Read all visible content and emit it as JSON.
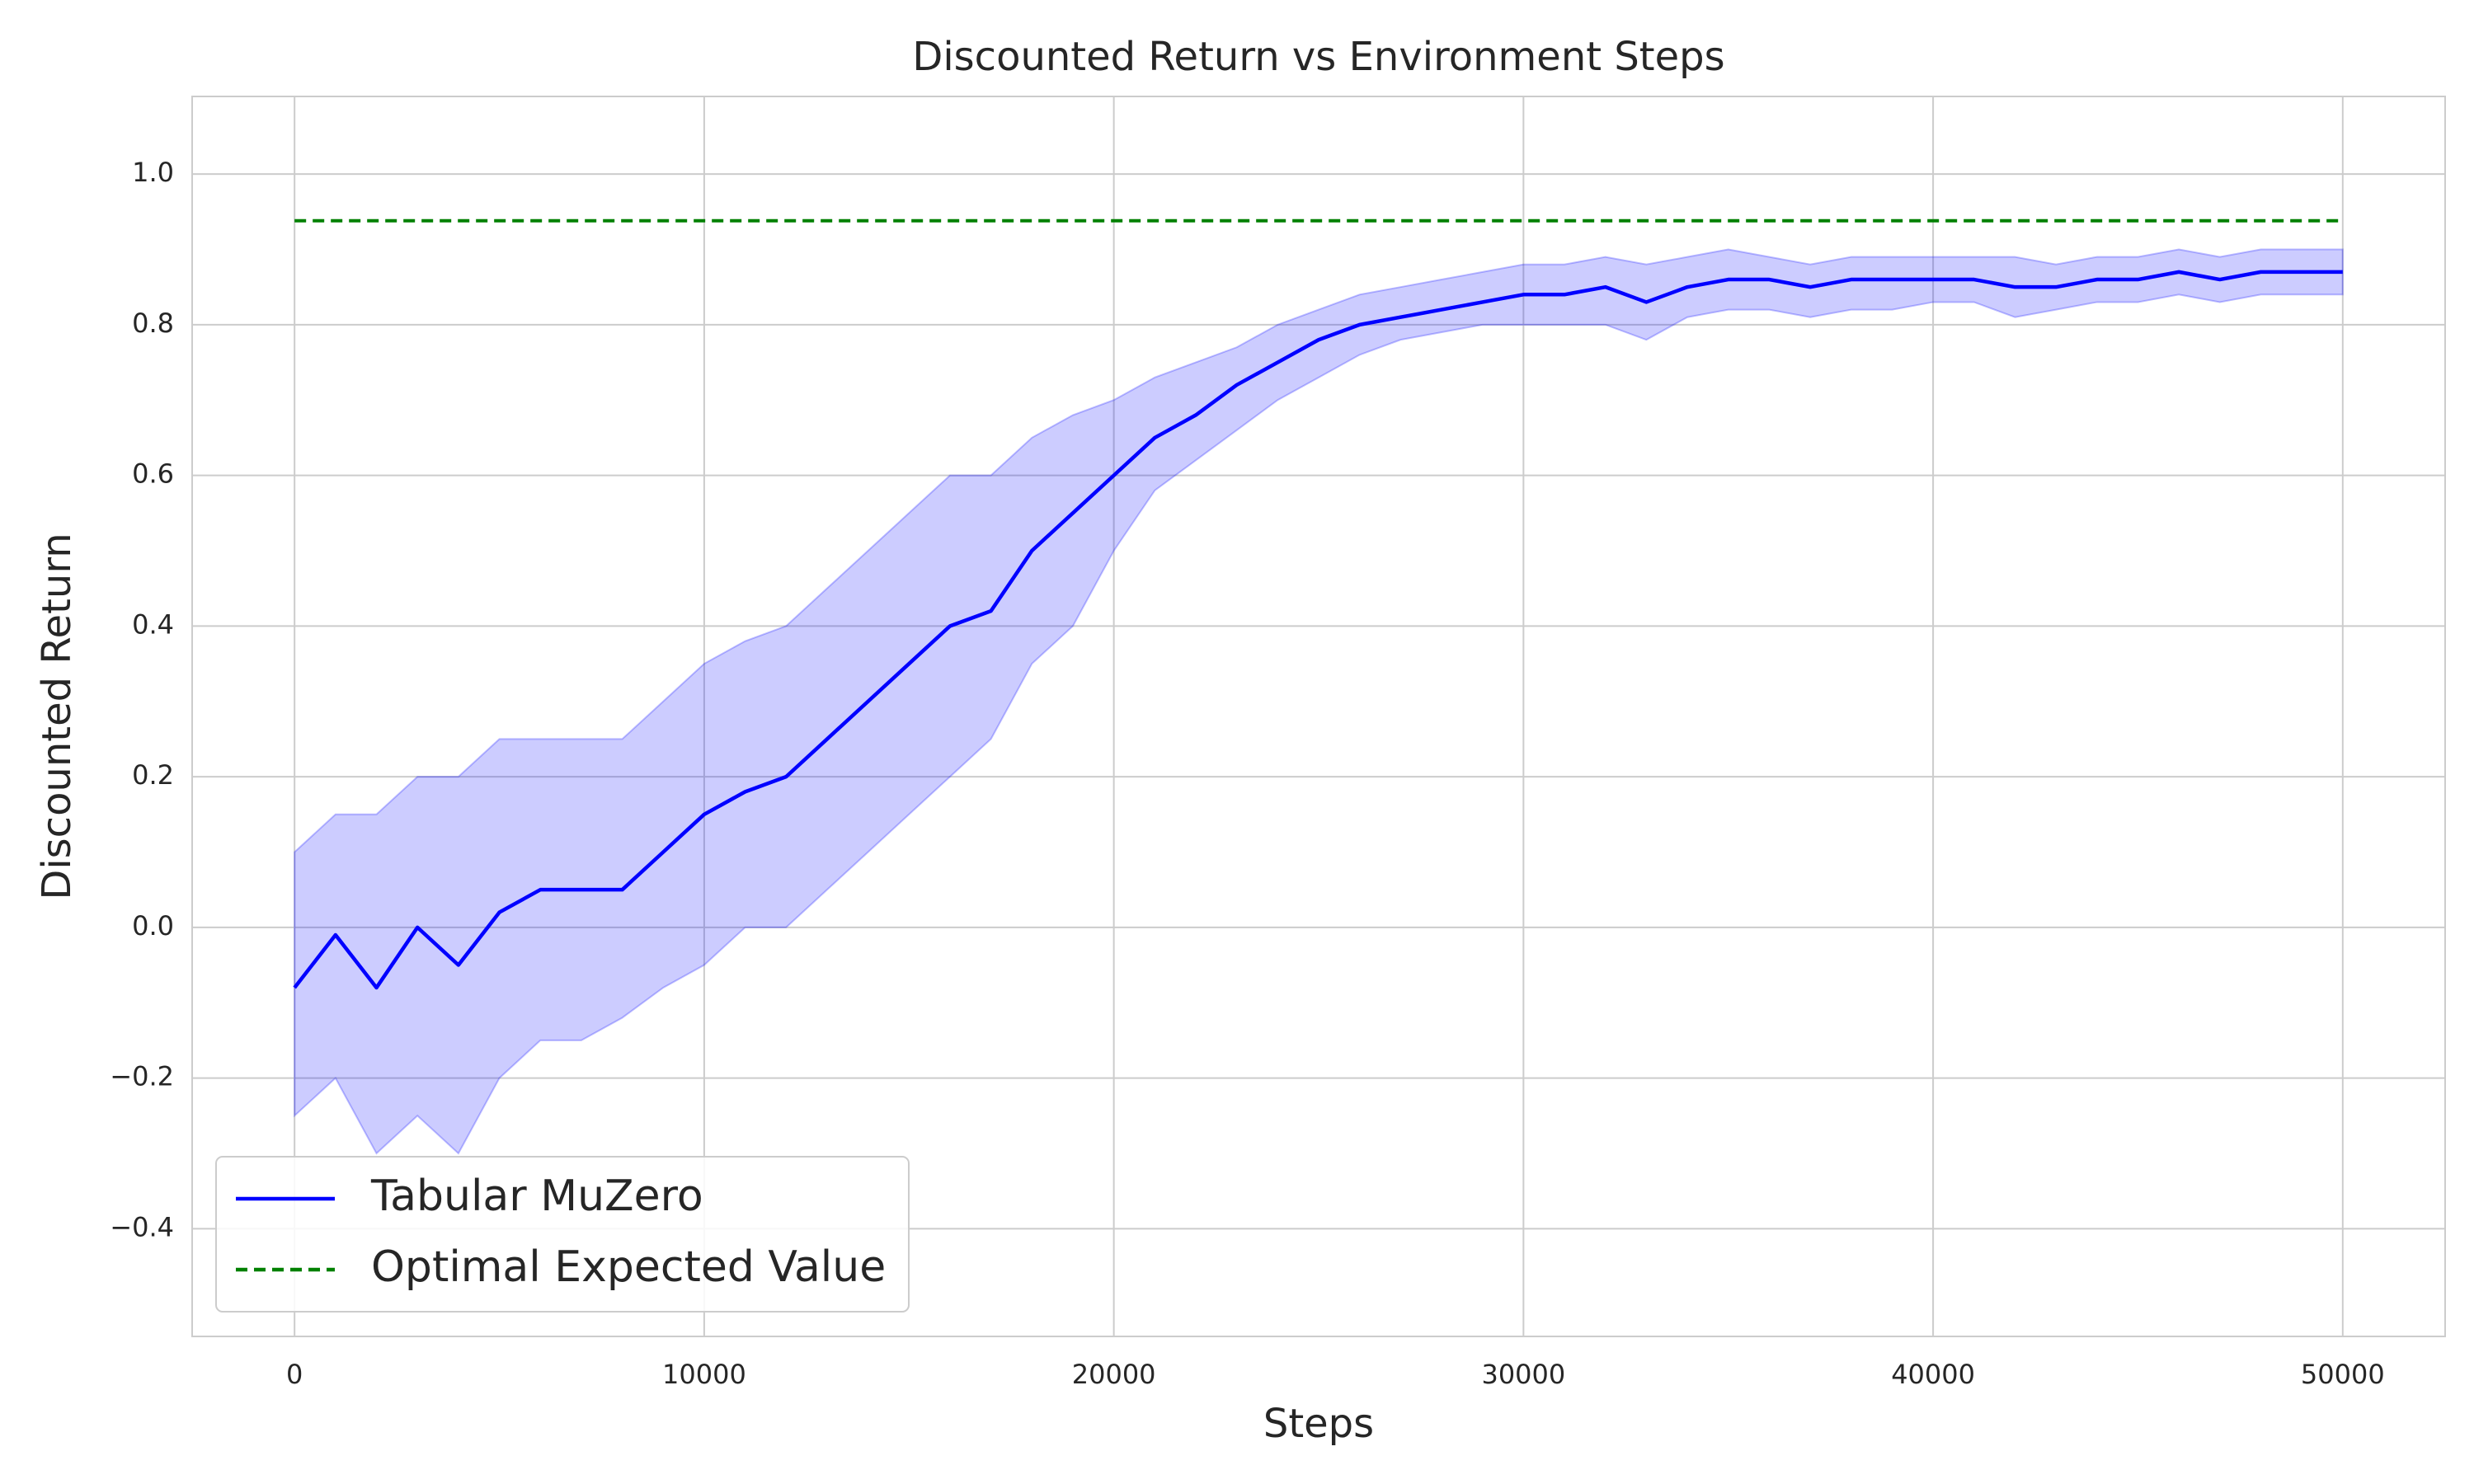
{
  "chart_data": {
    "type": "line",
    "title": "Discounted Return vs Environment Steps",
    "x_label": "Steps",
    "y_label": "Discounted Return",
    "x": [
      0,
      1000,
      2000,
      3000,
      4000,
      5000,
      6000,
      7000,
      8000,
      9000,
      10000,
      11000,
      12000,
      13000,
      14000,
      15000,
      16000,
      17000,
      18000,
      19000,
      20000,
      21000,
      22000,
      23000,
      24000,
      25000,
      26000,
      27000,
      28000,
      29000,
      30000,
      31000,
      32000,
      33000,
      34000,
      35000,
      36000,
      37000,
      38000,
      39000,
      40000,
      41000,
      42000,
      43000,
      44000,
      45000,
      46000,
      47000,
      48000,
      49000,
      50000
    ],
    "series": [
      {
        "name": "Tabular MuZero",
        "color": "#0000ff",
        "style": "solid",
        "band_color": "#0000ff",
        "values": [
          -0.08,
          -0.01,
          -0.08,
          0.0,
          -0.05,
          0.02,
          0.05,
          0.05,
          0.05,
          0.1,
          0.15,
          0.18,
          0.2,
          0.25,
          0.3,
          0.35,
          0.4,
          0.42,
          0.5,
          0.55,
          0.6,
          0.65,
          0.68,
          0.72,
          0.75,
          0.78,
          0.8,
          0.81,
          0.82,
          0.83,
          0.84,
          0.84,
          0.85,
          0.83,
          0.85,
          0.86,
          0.86,
          0.85,
          0.86,
          0.86,
          0.86,
          0.86,
          0.85,
          0.85,
          0.86,
          0.86,
          0.87,
          0.86,
          0.87,
          0.87,
          0.87
        ],
        "lower": [
          -0.25,
          -0.2,
          -0.3,
          -0.25,
          -0.3,
          -0.2,
          -0.15,
          -0.15,
          -0.12,
          -0.08,
          -0.05,
          0.0,
          0.0,
          0.05,
          0.1,
          0.15,
          0.2,
          0.25,
          0.35,
          0.4,
          0.5,
          0.58,
          0.62,
          0.66,
          0.7,
          0.73,
          0.76,
          0.78,
          0.79,
          0.8,
          0.8,
          0.8,
          0.8,
          0.78,
          0.81,
          0.82,
          0.82,
          0.81,
          0.82,
          0.82,
          0.83,
          0.83,
          0.81,
          0.82,
          0.83,
          0.83,
          0.84,
          0.83,
          0.84,
          0.84,
          0.84
        ],
        "upper": [
          0.1,
          0.15,
          0.15,
          0.2,
          0.2,
          0.25,
          0.25,
          0.25,
          0.25,
          0.3,
          0.35,
          0.38,
          0.4,
          0.45,
          0.5,
          0.55,
          0.6,
          0.6,
          0.65,
          0.68,
          0.7,
          0.73,
          0.75,
          0.77,
          0.8,
          0.82,
          0.84,
          0.85,
          0.86,
          0.87,
          0.88,
          0.88,
          0.89,
          0.88,
          0.89,
          0.9,
          0.89,
          0.88,
          0.89,
          0.89,
          0.89,
          0.89,
          0.89,
          0.88,
          0.89,
          0.89,
          0.9,
          0.89,
          0.9,
          0.9,
          0.9
        ]
      },
      {
        "name": "Optimal Expected Value",
        "color": "#008000",
        "style": "dashed",
        "x": [
          0,
          50000
        ],
        "values": [
          0.938,
          0.938
        ]
      }
    ],
    "xlim": [
      -2500,
      52500
    ],
    "ylim": [
      -0.543,
      1.103
    ],
    "xticks": [
      0,
      10000,
      20000,
      30000,
      40000,
      50000
    ],
    "yticks": [
      {
        "value": -0.4,
        "label": "−0.4"
      },
      {
        "value": -0.2,
        "label": "−0.2"
      },
      {
        "value": 0,
        "label": "0.0"
      },
      0.2,
      0.4,
      0.6,
      0.8,
      {
        "value": 1,
        "label": "1.0"
      }
    ],
    "grid": true,
    "legend": "lower left"
  }
}
